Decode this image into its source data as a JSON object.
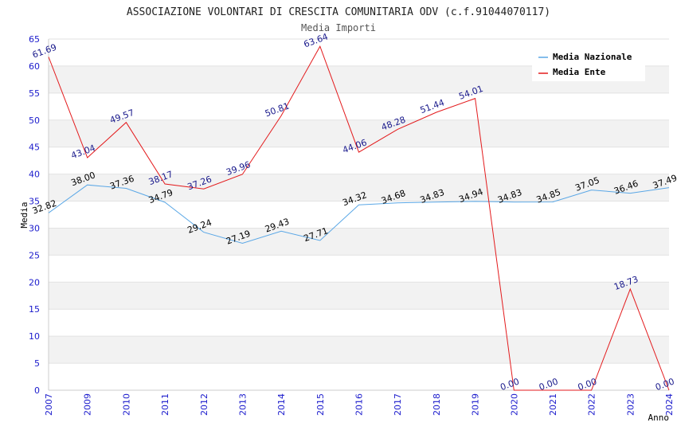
{
  "chart_data": {
    "type": "line",
    "title": "ASSOCIAZIONE VOLONTARI DI CRESCITA COMUNITARIA ODV (c.f.91044070117)",
    "subtitle": "Media Importi",
    "xlabel": "Anno",
    "ylabel": "Media",
    "ylim": [
      0,
      65
    ],
    "y_ticks": [
      "0",
      "5",
      "10",
      "15",
      "20",
      "25",
      "30",
      "35",
      "40",
      "45",
      "50",
      "55",
      "60",
      "65"
    ],
    "categories": [
      "2007",
      "2009",
      "2010",
      "2011",
      "2012",
      "2013",
      "2014",
      "2015",
      "2016",
      "2017",
      "2018",
      "2019",
      "2020",
      "2021",
      "2022",
      "2023",
      "2024"
    ],
    "grid": "horizontal alternating bands",
    "legend_position": "top-right",
    "series": [
      {
        "name": "Media Nazionale",
        "color": "#5aa7e6",
        "label_color": "#000000",
        "values": [
          32.82,
          38.0,
          37.36,
          34.79,
          29.24,
          27.19,
          29.43,
          27.71,
          34.32,
          34.68,
          34.83,
          34.94,
          34.83,
          34.85,
          37.05,
          36.46,
          37.49
        ],
        "labels": [
          "32.82",
          "38.00",
          "37.36",
          "34.79",
          "29.24",
          "27.19",
          "29.43",
          "27.71",
          "34.32",
          "34.68",
          "34.83",
          "34.94",
          "34.83",
          "34.85",
          "37.05",
          "36.46",
          "37.49"
        ]
      },
      {
        "name": "Media Ente",
        "color": "#e31a1c",
        "label_color": "#1a1a8c",
        "values": [
          61.69,
          43.04,
          49.57,
          38.17,
          37.26,
          39.96,
          50.81,
          63.64,
          44.06,
          48.28,
          51.44,
          54.01,
          0.0,
          0.0,
          0.0,
          18.73,
          0.0
        ],
        "labels": [
          "61.69",
          "43.04",
          "49.57",
          "38.17",
          "37.26",
          "39.96",
          "50.81",
          "63.64",
          "44.06",
          "48.28",
          "51.44",
          "54.01",
          "0.00",
          "0.00",
          "0.00",
          "18.73",
          "0.00"
        ]
      }
    ]
  }
}
